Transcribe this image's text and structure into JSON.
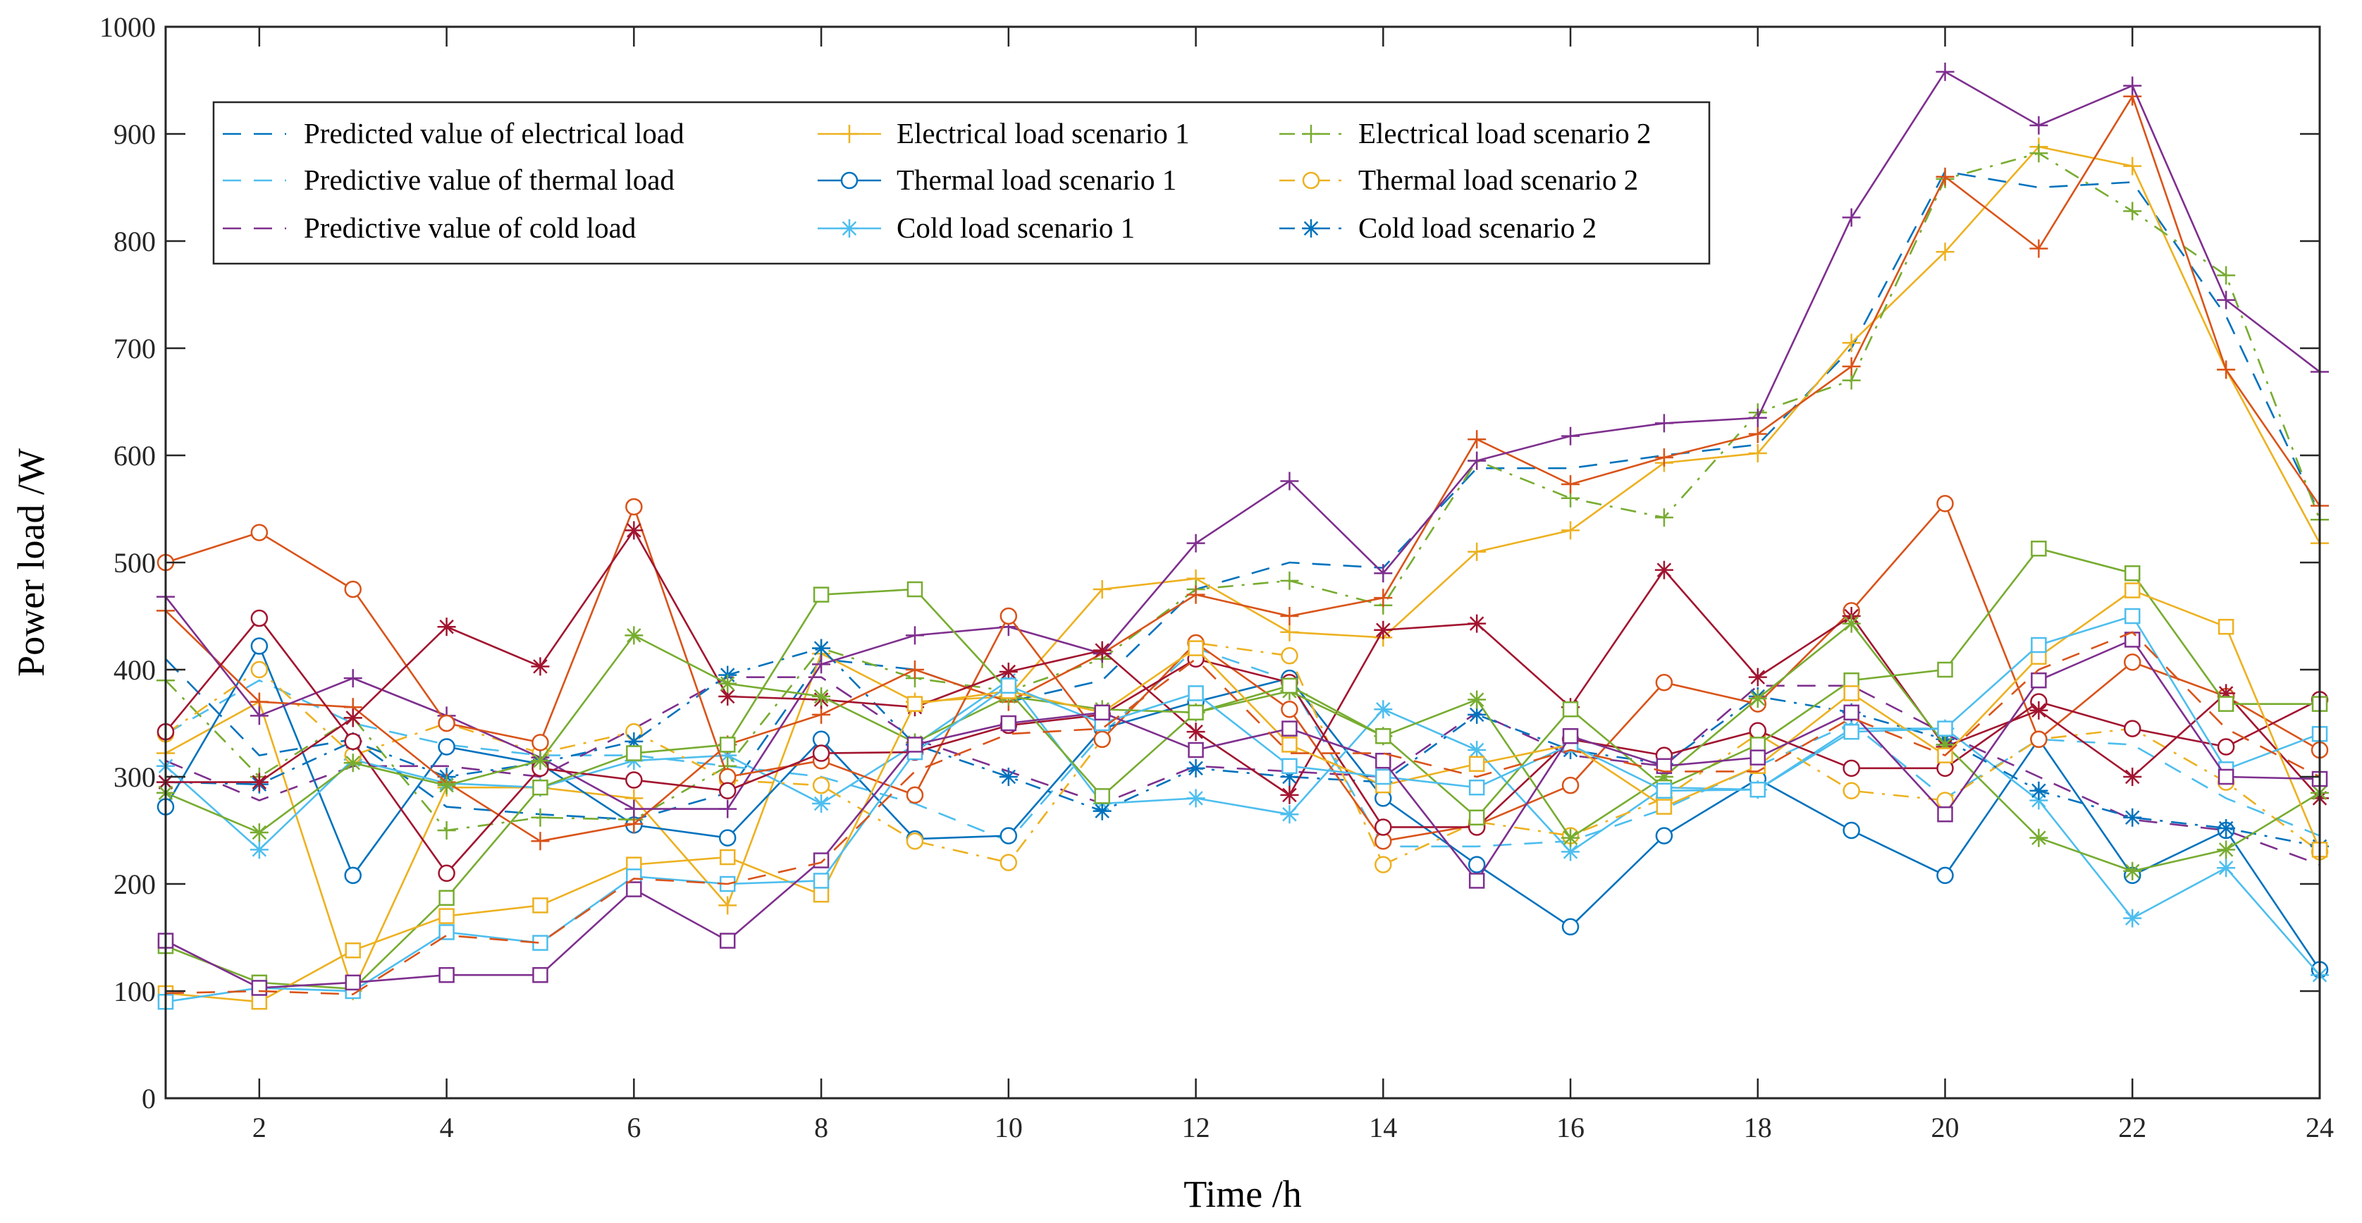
{
  "chart_data": {
    "type": "line",
    "title": "",
    "xlabel": "Time /h",
    "ylabel": "Power load /W",
    "xlim": [
      1,
      24
    ],
    "ylim": [
      0,
      1000
    ],
    "xticks": [
      2,
      4,
      6,
      8,
      10,
      12,
      14,
      16,
      18,
      20,
      22,
      24
    ],
    "yticks": [
      0,
      100,
      200,
      300,
      400,
      500,
      600,
      700,
      800,
      900,
      1000
    ],
    "grid": false,
    "legend_placement": "top-left",
    "x": [
      1,
      2,
      3,
      4,
      5,
      6,
      7,
      8,
      9,
      10,
      11,
      12,
      13,
      14,
      15,
      16,
      17,
      18,
      19,
      20,
      21,
      22,
      23,
      24
    ],
    "series": [
      {
        "name": "Predicted value of electrical load",
        "color": "#0072BD",
        "line": "dashed",
        "marker": "none",
        "values": [
          410,
          320,
          335,
          272,
          265,
          260,
          285,
          410,
          400,
          370,
          390,
          475,
          500,
          495,
          588,
          588,
          600,
          610,
          700,
          865,
          850,
          855,
          730,
          545
        ]
      },
      {
        "name": "Predictive value of thermal load",
        "color": "#4DBEEE",
        "line": "dashed",
        "marker": "none",
        "values": [
          340,
          390,
          350,
          330,
          320,
          320,
          310,
          300,
          275,
          240,
          340,
          420,
          390,
          235,
          235,
          240,
          270,
          310,
          350,
          280,
          335,
          330,
          280,
          245
        ]
      },
      {
        "name": "Predictive value of cold load",
        "color": "#7E2F8E",
        "line": "dashed",
        "marker": "none",
        "values": [
          315,
          278,
          310,
          310,
          300,
          345,
          393,
          393,
          335,
          305,
          275,
          310,
          305,
          300,
          360,
          320,
          310,
          385,
          385,
          340,
          300,
          260,
          250,
          218
        ]
      },
      {
        "name": "Electrical load scenario 1",
        "color": "#EDB120",
        "line": "solid",
        "marker": "plus",
        "values": [
          322,
          370,
          100,
          290,
          290,
          280,
          180,
          415,
          370,
          375,
          475,
          485,
          435,
          430,
          510,
          530,
          593,
          602,
          705,
          790,
          888,
          870,
          680,
          518
        ]
      },
      {
        "name": "Thermal load scenario 1",
        "color": "#0072BD",
        "line": "solid",
        "marker": "circle",
        "values": [
          272,
          422,
          208,
          328,
          312,
          255,
          243,
          335,
          242,
          245,
          345,
          370,
          392,
          280,
          218,
          160,
          245,
          298,
          250,
          208,
          335,
          208,
          250,
          120
        ]
      },
      {
        "name": "Cold load scenario 1",
        "color": "#4DBEEE",
        "line": "solid",
        "marker": "star",
        "values": [
          310,
          232,
          316,
          294,
          290,
          315,
          320,
          275,
          330,
          390,
          275,
          280,
          265,
          363,
          325,
          230,
          290,
          288,
          345,
          345,
          278,
          168,
          215,
          115
        ]
      },
      {
        "name": "Electrical load scenario 2",
        "color": "#77AC30",
        "line": "dashdot",
        "marker": "plus",
        "values": [
          390,
          300,
          355,
          250,
          262,
          260,
          310,
          420,
          392,
          380,
          410,
          475,
          483,
          460,
          595,
          560,
          542,
          640,
          670,
          858,
          882,
          828,
          768,
          540
        ]
      },
      {
        "name": "Thermal load scenario 2",
        "color": "#EDB120",
        "line": "dashdot",
        "marker": "circle",
        "values": [
          340,
          400,
          320,
          350,
          322,
          342,
          297,
          292,
          240,
          220,
          335,
          425,
          413,
          218,
          258,
          245,
          280,
          340,
          287,
          278,
          335,
          345,
          295,
          230
        ]
      },
      {
        "name": "Cold load scenario 2",
        "color": "#0072BD",
        "line": "dashdot",
        "marker": "star",
        "values": [
          295,
          293,
          333,
          300,
          313,
          333,
          395,
          420,
          330,
          300,
          268,
          308,
          300,
          295,
          358,
          325,
          312,
          375,
          360,
          335,
          287,
          262,
          252,
          235
        ]
      },
      {
        "color": "#D95319",
        "line": "solid",
        "marker": "plus",
        "values": [
          455,
          370,
          365,
          295,
          240,
          256,
          330,
          358,
          400,
          370,
          415,
          470,
          450,
          467,
          615,
          573,
          598,
          620,
          683,
          860,
          793,
          935,
          680,
          553
        ]
      },
      {
        "color": "#7E2F8E",
        "line": "solid",
        "marker": "plus",
        "values": [
          468,
          357,
          392,
          357,
          318,
          270,
          270,
          405,
          432,
          440,
          415,
          518,
          576,
          490,
          595,
          618,
          630,
          635,
          822,
          958,
          908,
          945,
          745,
          678
        ]
      },
      {
        "color": "#D95319",
        "line": "solid",
        "marker": "circle",
        "values": [
          500,
          528,
          475,
          350,
          332,
          552,
          300,
          315,
          283,
          450,
          335,
          425,
          363,
          240,
          255,
          292,
          388,
          368,
          455,
          555,
          335,
          407,
          375,
          325
        ]
      },
      {
        "color": "#A2142F",
        "line": "solid",
        "marker": "circle",
        "values": [
          342,
          448,
          333,
          210,
          308,
          297,
          287,
          322,
          323,
          348,
          358,
          410,
          388,
          253,
          253,
          335,
          320,
          343,
          308,
          308,
          370,
          345,
          328,
          372
        ]
      },
      {
        "color": "#A2142F",
        "line": "solid",
        "marker": "star",
        "values": [
          295,
          295,
          355,
          440,
          403,
          530,
          375,
          372,
          365,
          398,
          418,
          342,
          283,
          437,
          443,
          365,
          493,
          393,
          450,
          328,
          362,
          300,
          378,
          280
        ]
      },
      {
        "color": "#77AC30",
        "line": "solid",
        "marker": "star",
        "values": [
          285,
          248,
          313,
          292,
          315,
          432,
          387,
          375,
          332,
          375,
          363,
          360,
          380,
          338,
          372,
          243,
          300,
          373,
          443,
          330,
          243,
          212,
          232,
          285
        ]
      },
      {
        "color": "#77AC30",
        "line": "solid",
        "marker": "square",
        "values": [
          142,
          108,
          102,
          187,
          290,
          322,
          330,
          470,
          475,
          380,
          282,
          360,
          385,
          338,
          262,
          363,
          290,
          330,
          390,
          400,
          513,
          490,
          368,
          368
        ]
      },
      {
        "color": "#EDB120",
        "line": "solid",
        "marker": "square",
        "values": [
          98,
          90,
          138,
          170,
          180,
          218,
          225,
          190,
          368,
          380,
          360,
          420,
          330,
          292,
          312,
          330,
          272,
          310,
          378,
          320,
          412,
          474,
          440,
          232
        ]
      },
      {
        "color": "#4DBEEE",
        "line": "solid",
        "marker": "square",
        "values": [
          90,
          103,
          100,
          155,
          145,
          207,
          200,
          203,
          323,
          385,
          350,
          378,
          310,
          300,
          290,
          330,
          287,
          288,
          342,
          345,
          423,
          450,
          307,
          340
        ]
      },
      {
        "color": "#7E2F8E",
        "line": "solid",
        "marker": "square",
        "values": [
          147,
          103,
          108,
          115,
          115,
          195,
          147,
          222,
          330,
          350,
          360,
          325,
          345,
          315,
          203,
          338,
          310,
          318,
          360,
          265,
          390,
          428,
          300,
          298
        ]
      },
      {
        "color": "#D95319",
        "line": "dashed",
        "marker": "none",
        "values": [
          98,
          100,
          97,
          152,
          145,
          205,
          200,
          220,
          305,
          340,
          345,
          410,
          322,
          322,
          300,
          325,
          305,
          305,
          355,
          320,
          400,
          435,
          345,
          300
        ]
      }
    ]
  }
}
